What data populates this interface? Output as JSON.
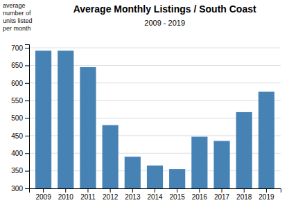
{
  "chart_data": {
    "type": "bar",
    "title": "Average Monthly Listings / South Coast",
    "subtitle": "2009 - 2019",
    "ylabel": "average\nnumber of\nunits listed\nper month",
    "categories": [
      "2009",
      "2010",
      "2011",
      "2012",
      "2013",
      "2014",
      "2015",
      "2016",
      "2017",
      "2018",
      "2019"
    ],
    "values": [
      692,
      692,
      645,
      480,
      390,
      365,
      355,
      447,
      435,
      517,
      575
    ],
    "ylim": [
      300,
      710
    ],
    "yticks": [
      300,
      350,
      400,
      450,
      500,
      550,
      600,
      650,
      700
    ],
    "grid": true
  }
}
